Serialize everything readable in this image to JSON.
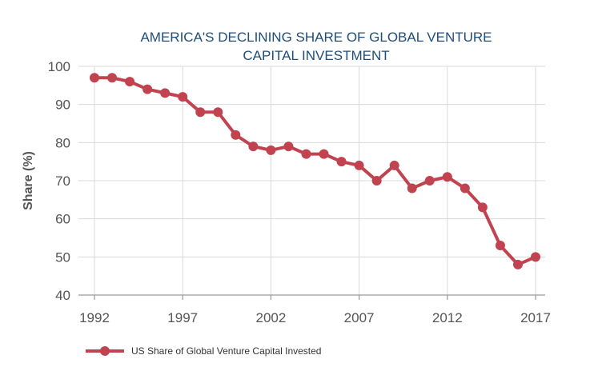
{
  "chart_data": {
    "type": "line",
    "title_line1": "AMERICA'S DECLINING SHARE OF GLOBAL VENTURE",
    "title_line2": "CAPITAL INVESTMENT",
    "xlabel": "",
    "ylabel": "Share (%)",
    "xlim": [
      1992,
      2017
    ],
    "ylim": [
      40,
      100
    ],
    "x_ticks": [
      1992,
      1997,
      2002,
      2007,
      2012,
      2017
    ],
    "y_ticks": [
      40,
      50,
      60,
      70,
      80,
      90,
      100
    ],
    "grid": true,
    "legend_position": "bottom-left",
    "series": [
      {
        "name": "US Share of Global Venture Capital Invested",
        "color": "#c0434f",
        "x": [
          1992,
          1993,
          1994,
          1995,
          1996,
          1997,
          1998,
          1999,
          2000,
          2001,
          2002,
          2003,
          2004,
          2005,
          2006,
          2007,
          2008,
          2009,
          2010,
          2011,
          2012,
          2013,
          2014,
          2015,
          2016,
          2017
        ],
        "y": [
          97,
          97,
          96,
          94,
          93,
          92,
          88,
          88,
          82,
          79,
          78,
          79,
          77,
          77,
          75,
          74,
          70,
          74,
          68,
          70,
          71,
          68,
          63,
          53,
          48,
          50
        ]
      }
    ]
  }
}
